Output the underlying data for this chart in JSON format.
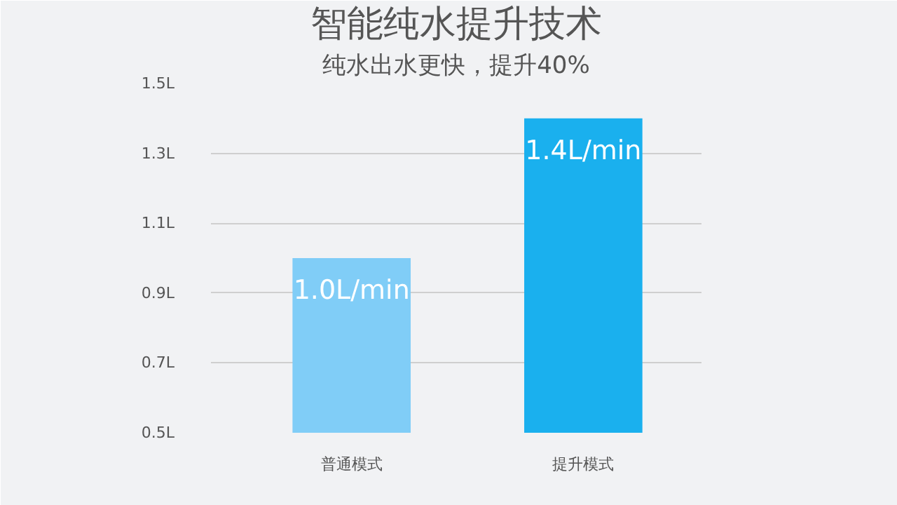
{
  "chart_data": {
    "type": "bar",
    "title": "智能纯水提升技术",
    "subtitle": "纯水出水更快，提升40%",
    "categories": [
      "普通模式",
      "提升模式"
    ],
    "values": [
      1.0,
      1.4
    ],
    "colors": [
      "#80cdf7",
      "#1ab0ee"
    ],
    "value_labels": [
      "1.0L/min",
      "1.4L/min"
    ],
    "ylim": [
      0.5,
      1.5
    ],
    "yticks": [
      {
        "value": 0.5,
        "label": "0.5L"
      },
      {
        "value": 0.7,
        "label": "0.7L"
      },
      {
        "value": 0.9,
        "label": "0.9L"
      },
      {
        "value": 1.1,
        "label": "1.1L"
      },
      {
        "value": 1.3,
        "label": "1.3L"
      },
      {
        "value": 1.5,
        "label": "1.5L"
      }
    ],
    "grid": "y"
  }
}
